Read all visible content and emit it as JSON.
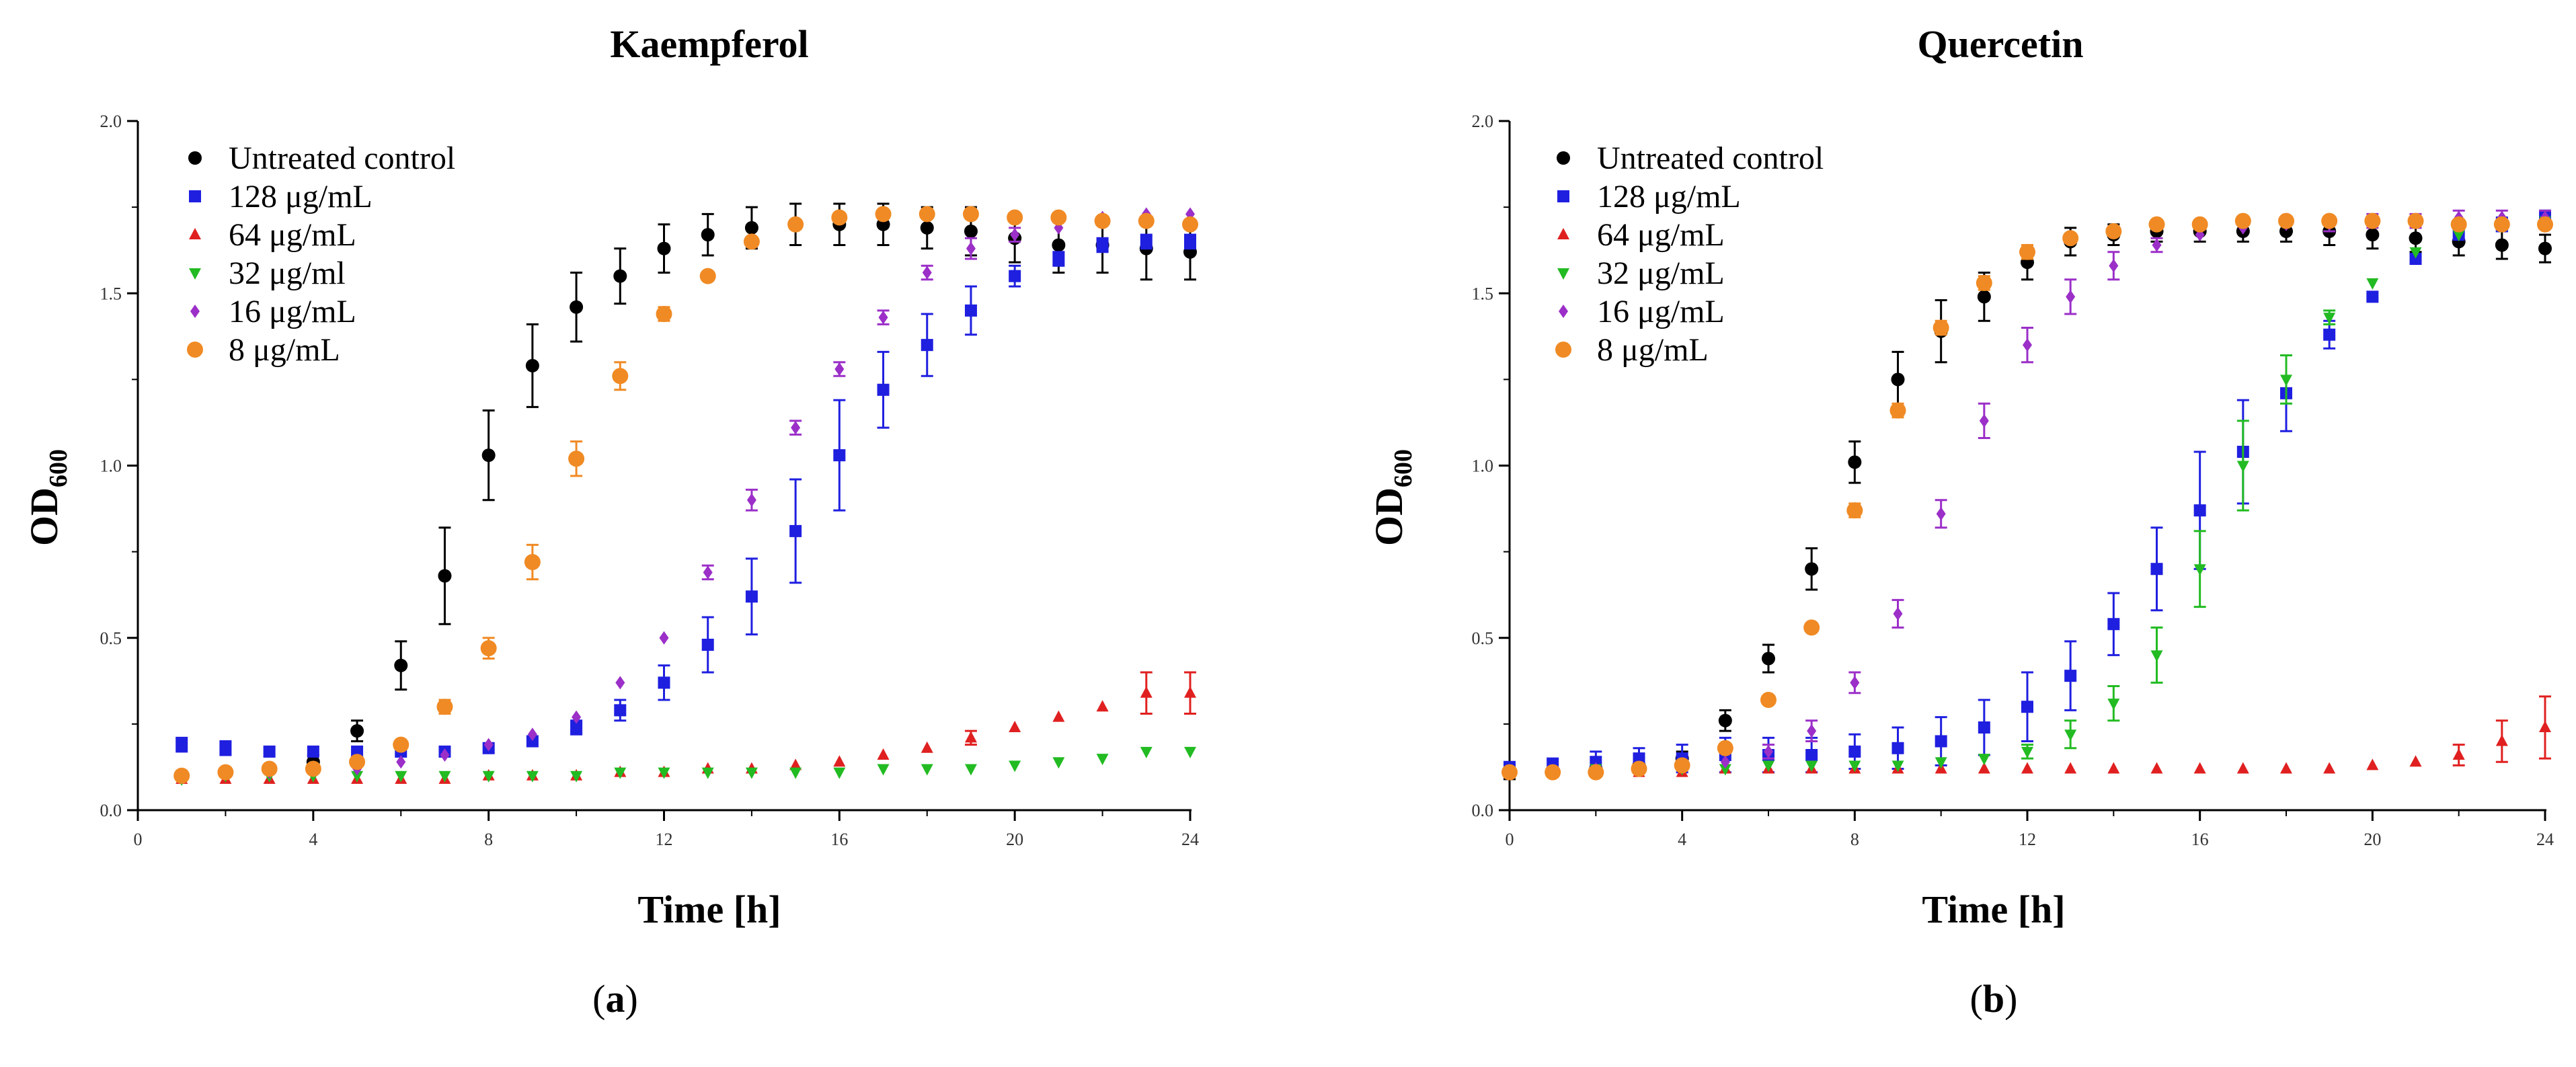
{
  "figure": {
    "panel_labels": [
      "(a)",
      "(b)"
    ]
  },
  "chart_data": [
    {
      "type": "scatter",
      "title": "Kaempferol",
      "panel": "a",
      "xlabel": "Time [h]",
      "ylabel": "OD",
      "ylabel_sub": "600",
      "xlim": [
        0,
        24
      ],
      "ylim": [
        0,
        2.0
      ],
      "xticks": [
        0,
        4,
        8,
        12,
        16,
        20,
        24
      ],
      "xminor": [
        2,
        6,
        10,
        14,
        18,
        22
      ],
      "yticks": [
        0.0,
        0.5,
        1.0,
        1.5,
        2.0
      ],
      "ytick_labels": [
        "0.0",
        "0.5",
        "1.0",
        "1.5",
        "2.0"
      ],
      "legend_position": "top-left",
      "series": [
        {
          "name": "Untreated control",
          "marker": "circle",
          "color": "#000000",
          "x": [
            1,
            2,
            3,
            4,
            5,
            6,
            7,
            8,
            9,
            10,
            11,
            12,
            13,
            14,
            15,
            16,
            17,
            18,
            19,
            20,
            21,
            22,
            23,
            24
          ],
          "y": [
            0.1,
            0.11,
            0.12,
            0.14,
            0.23,
            0.42,
            0.68,
            1.03,
            1.29,
            1.46,
            1.55,
            1.63,
            1.67,
            1.69,
            1.7,
            1.7,
            1.7,
            1.69,
            1.68,
            1.66,
            1.64,
            1.64,
            1.63,
            1.62
          ],
          "err": [
            0.01,
            0.01,
            0.01,
            0.02,
            0.03,
            0.07,
            0.14,
            0.13,
            0.12,
            0.1,
            0.08,
            0.07,
            0.06,
            0.06,
            0.06,
            0.06,
            0.06,
            0.06,
            0.07,
            0.07,
            0.08,
            0.08,
            0.09,
            0.08
          ]
        },
        {
          "name": "128 μg/mL",
          "marker": "square",
          "color": "#1f1fe0",
          "x": [
            1,
            2,
            3,
            4,
            5,
            6,
            7,
            8,
            9,
            10,
            11,
            12,
            13,
            14,
            15,
            16,
            17,
            18,
            19,
            20,
            21,
            22,
            23,
            24
          ],
          "y": [
            0.19,
            0.18,
            0.17,
            0.17,
            0.17,
            0.17,
            0.17,
            0.18,
            0.2,
            0.24,
            0.29,
            0.37,
            0.48,
            0.62,
            0.81,
            1.03,
            1.22,
            1.35,
            1.45,
            1.55,
            1.6,
            1.64,
            1.65,
            1.65
          ],
          "err": [
            0.02,
            0.02,
            0.01,
            0.01,
            0.01,
            0.01,
            0.01,
            0.01,
            0.01,
            0.02,
            0.03,
            0.05,
            0.08,
            0.11,
            0.15,
            0.16,
            0.11,
            0.09,
            0.07,
            0.03,
            0.02,
            0.02,
            0.02,
            0.02
          ]
        },
        {
          "name": "64 μg/mL",
          "marker": "triangle-up",
          "color": "#e02020",
          "x": [
            1,
            2,
            3,
            4,
            5,
            6,
            7,
            8,
            9,
            10,
            11,
            12,
            13,
            14,
            15,
            16,
            17,
            18,
            19,
            20,
            21,
            22,
            23,
            24
          ],
          "y": [
            0.09,
            0.09,
            0.09,
            0.09,
            0.09,
            0.09,
            0.09,
            0.1,
            0.1,
            0.1,
            0.11,
            0.11,
            0.12,
            0.12,
            0.13,
            0.14,
            0.16,
            0.18,
            0.21,
            0.24,
            0.27,
            0.3,
            0.34,
            0.34
          ],
          "err": [
            0.01,
            0.01,
            0.01,
            0.01,
            0.01,
            0.01,
            0.01,
            0.01,
            0.01,
            0.01,
            0.01,
            0.01,
            0.01,
            0.01,
            0.01,
            0.01,
            0.01,
            0.01,
            0.02,
            0.01,
            0.01,
            0.01,
            0.06,
            0.06
          ]
        },
        {
          "name": "32 μg/ml",
          "marker": "triangle-down",
          "color": "#22bb22",
          "x": [
            1,
            2,
            3,
            4,
            5,
            6,
            7,
            8,
            9,
            10,
            11,
            12,
            13,
            14,
            15,
            16,
            17,
            18,
            19,
            20,
            21,
            22,
            23,
            24
          ],
          "y": [
            0.09,
            0.1,
            0.1,
            0.1,
            0.1,
            0.1,
            0.1,
            0.1,
            0.1,
            0.1,
            0.11,
            0.11,
            0.11,
            0.11,
            0.11,
            0.11,
            0.12,
            0.12,
            0.12,
            0.13,
            0.14,
            0.15,
            0.17,
            0.17
          ],
          "err": [
            0.01,
            0.01,
            0.01,
            0.01,
            0.01,
            0.01,
            0.01,
            0.01,
            0.01,
            0.01,
            0.01,
            0.01,
            0.01,
            0.01,
            0.01,
            0.01,
            0.01,
            0.01,
            0.01,
            0.01,
            0.01,
            0.01,
            0.01,
            0.01
          ]
        },
        {
          "name": "16 μg/mL",
          "marker": "diamond",
          "color": "#9b2fc8",
          "x": [
            1,
            2,
            3,
            4,
            5,
            6,
            7,
            8,
            9,
            10,
            11,
            12,
            13,
            14,
            15,
            16,
            17,
            18,
            19,
            20,
            21,
            22,
            23,
            24
          ],
          "y": [
            0.1,
            0.11,
            0.11,
            0.12,
            0.12,
            0.14,
            0.16,
            0.19,
            0.22,
            0.27,
            0.37,
            0.5,
            0.69,
            0.9,
            1.11,
            1.28,
            1.43,
            1.56,
            1.63,
            1.67,
            1.69,
            1.72,
            1.73,
            1.73
          ],
          "err": [
            0.01,
            0.01,
            0.01,
            0.01,
            0.01,
            0.01,
            0.01,
            0.01,
            0.01,
            0.01,
            0.01,
            0.01,
            0.02,
            0.03,
            0.02,
            0.02,
            0.02,
            0.02,
            0.03,
            0.02,
            0.01,
            0.01,
            0.01,
            0.01
          ]
        },
        {
          "name": "8 μg/mL",
          "marker": "circle-large",
          "color": "#f08a24",
          "x": [
            1,
            2,
            3,
            4,
            5,
            6,
            7,
            8,
            9,
            10,
            11,
            12,
            13,
            14,
            15,
            16,
            17,
            18,
            19,
            20,
            21,
            22,
            23,
            24
          ],
          "y": [
            0.1,
            0.11,
            0.12,
            0.12,
            0.14,
            0.19,
            0.3,
            0.47,
            0.72,
            1.02,
            1.26,
            1.44,
            1.55,
            1.65,
            1.7,
            1.72,
            1.73,
            1.73,
            1.73,
            1.72,
            1.72,
            1.71,
            1.71,
            1.7
          ],
          "err": [
            0.01,
            0.01,
            0.01,
            0.01,
            0.01,
            0.01,
            0.02,
            0.03,
            0.05,
            0.05,
            0.04,
            0.02,
            0.01,
            0.01,
            0.01,
            0.01,
            0.01,
            0.01,
            0.01,
            0.01,
            0.01,
            0.01,
            0.01,
            0.01
          ]
        }
      ]
    },
    {
      "type": "scatter",
      "title": "Quercetin",
      "panel": "b",
      "xlabel": "Time [h]",
      "ylabel": "OD",
      "ylabel_sub": "600",
      "xlim": [
        0,
        24
      ],
      "ylim": [
        0,
        2.0
      ],
      "xticks": [
        0,
        4,
        8,
        12,
        16,
        20,
        24
      ],
      "xminor": [
        2,
        6,
        10,
        14,
        18,
        22
      ],
      "yticks": [
        0.0,
        0.5,
        1.0,
        1.5,
        2.0
      ],
      "ytick_labels": [
        "0.0",
        "0.5",
        "1.0",
        "1.5",
        "2.0"
      ],
      "legend_position": "top-left",
      "series": [
        {
          "name": "Untreated control",
          "marker": "circle",
          "color": "#000000",
          "x": [
            0,
            1,
            2,
            3,
            4,
            5,
            6,
            7,
            8,
            9,
            10,
            11,
            12,
            13,
            14,
            15,
            16,
            17,
            18,
            19,
            20,
            21,
            22,
            23,
            24
          ],
          "y": [
            0.11,
            0.11,
            0.12,
            0.13,
            0.15,
            0.26,
            0.44,
            0.7,
            1.01,
            1.25,
            1.39,
            1.49,
            1.59,
            1.65,
            1.67,
            1.68,
            1.68,
            1.68,
            1.68,
            1.68,
            1.67,
            1.66,
            1.65,
            1.64,
            1.63
          ],
          "err": [
            0.02,
            0.01,
            0.01,
            0.01,
            0.02,
            0.03,
            0.04,
            0.06,
            0.06,
            0.08,
            0.09,
            0.07,
            0.05,
            0.04,
            0.03,
            0.03,
            0.03,
            0.03,
            0.03,
            0.04,
            0.04,
            0.04,
            0.04,
            0.04,
            0.04
          ]
        },
        {
          "name": "128 μg/mL",
          "marker": "square",
          "color": "#1f1fe0",
          "x": [
            0,
            1,
            2,
            3,
            4,
            5,
            6,
            7,
            8,
            9,
            10,
            11,
            12,
            13,
            14,
            15,
            16,
            17,
            18,
            19,
            20,
            21,
            22,
            23,
            24
          ],
          "y": [
            0.12,
            0.13,
            0.14,
            0.15,
            0.15,
            0.16,
            0.16,
            0.16,
            0.17,
            0.18,
            0.2,
            0.24,
            0.3,
            0.39,
            0.54,
            0.7,
            0.87,
            1.04,
            1.21,
            1.38,
            1.49,
            1.6,
            1.67,
            1.7,
            1.72
          ],
          "err": [
            0.02,
            0.02,
            0.03,
            0.03,
            0.04,
            0.05,
            0.05,
            0.05,
            0.05,
            0.06,
            0.07,
            0.08,
            0.1,
            0.1,
            0.09,
            0.12,
            0.17,
            0.15,
            0.11,
            0.04,
            0.01,
            0.01,
            0.01,
            0.02,
            0.02
          ]
        },
        {
          "name": "64 μg/mL",
          "marker": "triangle-up",
          "color": "#e02020",
          "x": [
            0,
            1,
            2,
            3,
            4,
            5,
            6,
            7,
            8,
            9,
            10,
            11,
            12,
            13,
            14,
            15,
            16,
            17,
            18,
            19,
            20,
            21,
            22,
            23,
            24
          ],
          "y": [
            0.11,
            0.11,
            0.11,
            0.11,
            0.11,
            0.12,
            0.12,
            0.12,
            0.12,
            0.12,
            0.12,
            0.12,
            0.12,
            0.12,
            0.12,
            0.12,
            0.12,
            0.12,
            0.12,
            0.12,
            0.13,
            0.14,
            0.16,
            0.2,
            0.24
          ],
          "err": [
            0.01,
            0.01,
            0.01,
            0.01,
            0.01,
            0.01,
            0.01,
            0.01,
            0.01,
            0.01,
            0.01,
            0.01,
            0.01,
            0.01,
            0.01,
            0.01,
            0.01,
            0.01,
            0.01,
            0.01,
            0.01,
            0.01,
            0.03,
            0.06,
            0.09
          ]
        },
        {
          "name": "32 μg/mL",
          "marker": "triangle-down",
          "color": "#22bb22",
          "x": [
            0,
            1,
            2,
            3,
            4,
            5,
            6,
            7,
            8,
            9,
            10,
            11,
            12,
            13,
            14,
            15,
            16,
            17,
            18,
            19,
            20,
            21,
            22,
            23,
            24
          ],
          "y": [
            0.11,
            0.11,
            0.12,
            0.12,
            0.12,
            0.12,
            0.13,
            0.13,
            0.13,
            0.13,
            0.14,
            0.15,
            0.17,
            0.22,
            0.31,
            0.45,
            0.7,
            1.0,
            1.25,
            1.43,
            1.53,
            1.62,
            1.67,
            1.7,
            1.71
          ],
          "err": [
            0.01,
            0.01,
            0.01,
            0.01,
            0.01,
            0.01,
            0.01,
            0.01,
            0.01,
            0.01,
            0.01,
            0.01,
            0.02,
            0.04,
            0.05,
            0.08,
            0.11,
            0.13,
            0.07,
            0.02,
            0.01,
            0.01,
            0.01,
            0.01,
            0.01
          ]
        },
        {
          "name": "16 μg/mL",
          "marker": "diamond",
          "color": "#9b2fc8",
          "x": [
            0,
            1,
            2,
            3,
            4,
            5,
            6,
            7,
            8,
            9,
            10,
            11,
            12,
            13,
            14,
            15,
            16,
            17,
            18,
            19,
            20,
            21,
            22,
            23,
            24
          ],
          "y": [
            0.11,
            0.11,
            0.12,
            0.12,
            0.13,
            0.14,
            0.17,
            0.23,
            0.37,
            0.57,
            0.86,
            1.13,
            1.35,
            1.49,
            1.58,
            1.64,
            1.67,
            1.69,
            1.7,
            1.7,
            1.71,
            1.71,
            1.72,
            1.72,
            1.72
          ],
          "err": [
            0.01,
            0.01,
            0.01,
            0.01,
            0.01,
            0.01,
            0.02,
            0.03,
            0.03,
            0.04,
            0.04,
            0.05,
            0.05,
            0.05,
            0.04,
            0.02,
            0.01,
            0.01,
            0.01,
            0.02,
            0.02,
            0.02,
            0.02,
            0.02,
            0.02
          ]
        },
        {
          "name": "8 μg/mL",
          "marker": "circle-large",
          "color": "#f08a24",
          "x": [
            0,
            1,
            2,
            3,
            4,
            5,
            6,
            7,
            8,
            9,
            10,
            11,
            12,
            13,
            14,
            15,
            16,
            17,
            18,
            19,
            20,
            21,
            22,
            23,
            24
          ],
          "y": [
            0.11,
            0.11,
            0.11,
            0.12,
            0.13,
            0.18,
            0.32,
            0.53,
            0.87,
            1.16,
            1.4,
            1.53,
            1.62,
            1.66,
            1.68,
            1.7,
            1.7,
            1.71,
            1.71,
            1.71,
            1.71,
            1.71,
            1.7,
            1.7,
            1.7
          ],
          "err": [
            0.01,
            0.01,
            0.01,
            0.01,
            0.01,
            0.01,
            0.01,
            0.01,
            0.02,
            0.02,
            0.02,
            0.02,
            0.02,
            0.01,
            0.01,
            0.01,
            0.01,
            0.01,
            0.01,
            0.01,
            0.01,
            0.01,
            0.01,
            0.01,
            0.01
          ]
        }
      ]
    }
  ]
}
